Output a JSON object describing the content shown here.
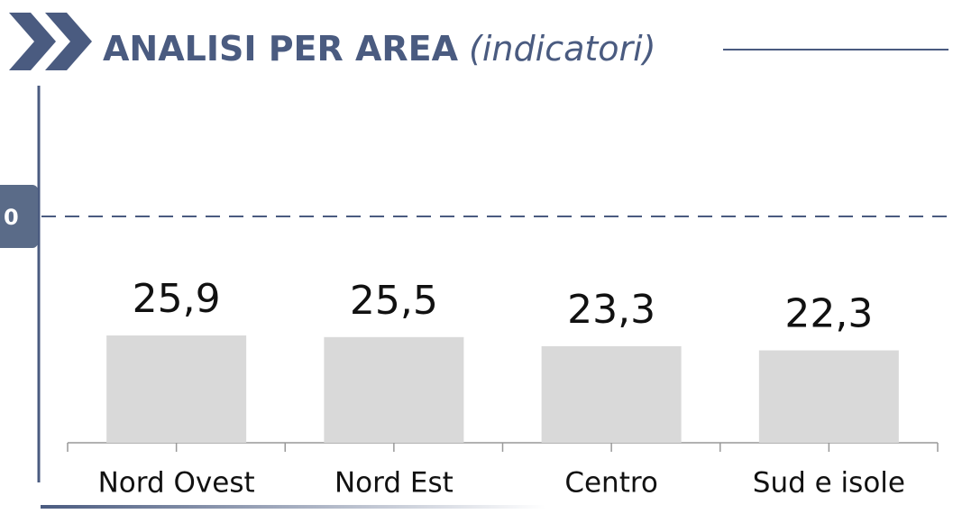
{
  "chart_data": {
    "type": "bar",
    "title": "ANALISI PER AREA",
    "subtitle": "(indicatori)",
    "categories": [
      "Nord Ovest",
      "Nord Est",
      "Centro",
      "Sud e isole"
    ],
    "values": [
      25.9,
      25.5,
      23.3,
      22.3
    ],
    "value_labels": [
      "25,9",
      "25,5",
      "23,3",
      "22,3"
    ],
    "color": "#d9d9d9",
    "ylim": [
      0,
      100
    ],
    "reference_label": "0"
  }
}
